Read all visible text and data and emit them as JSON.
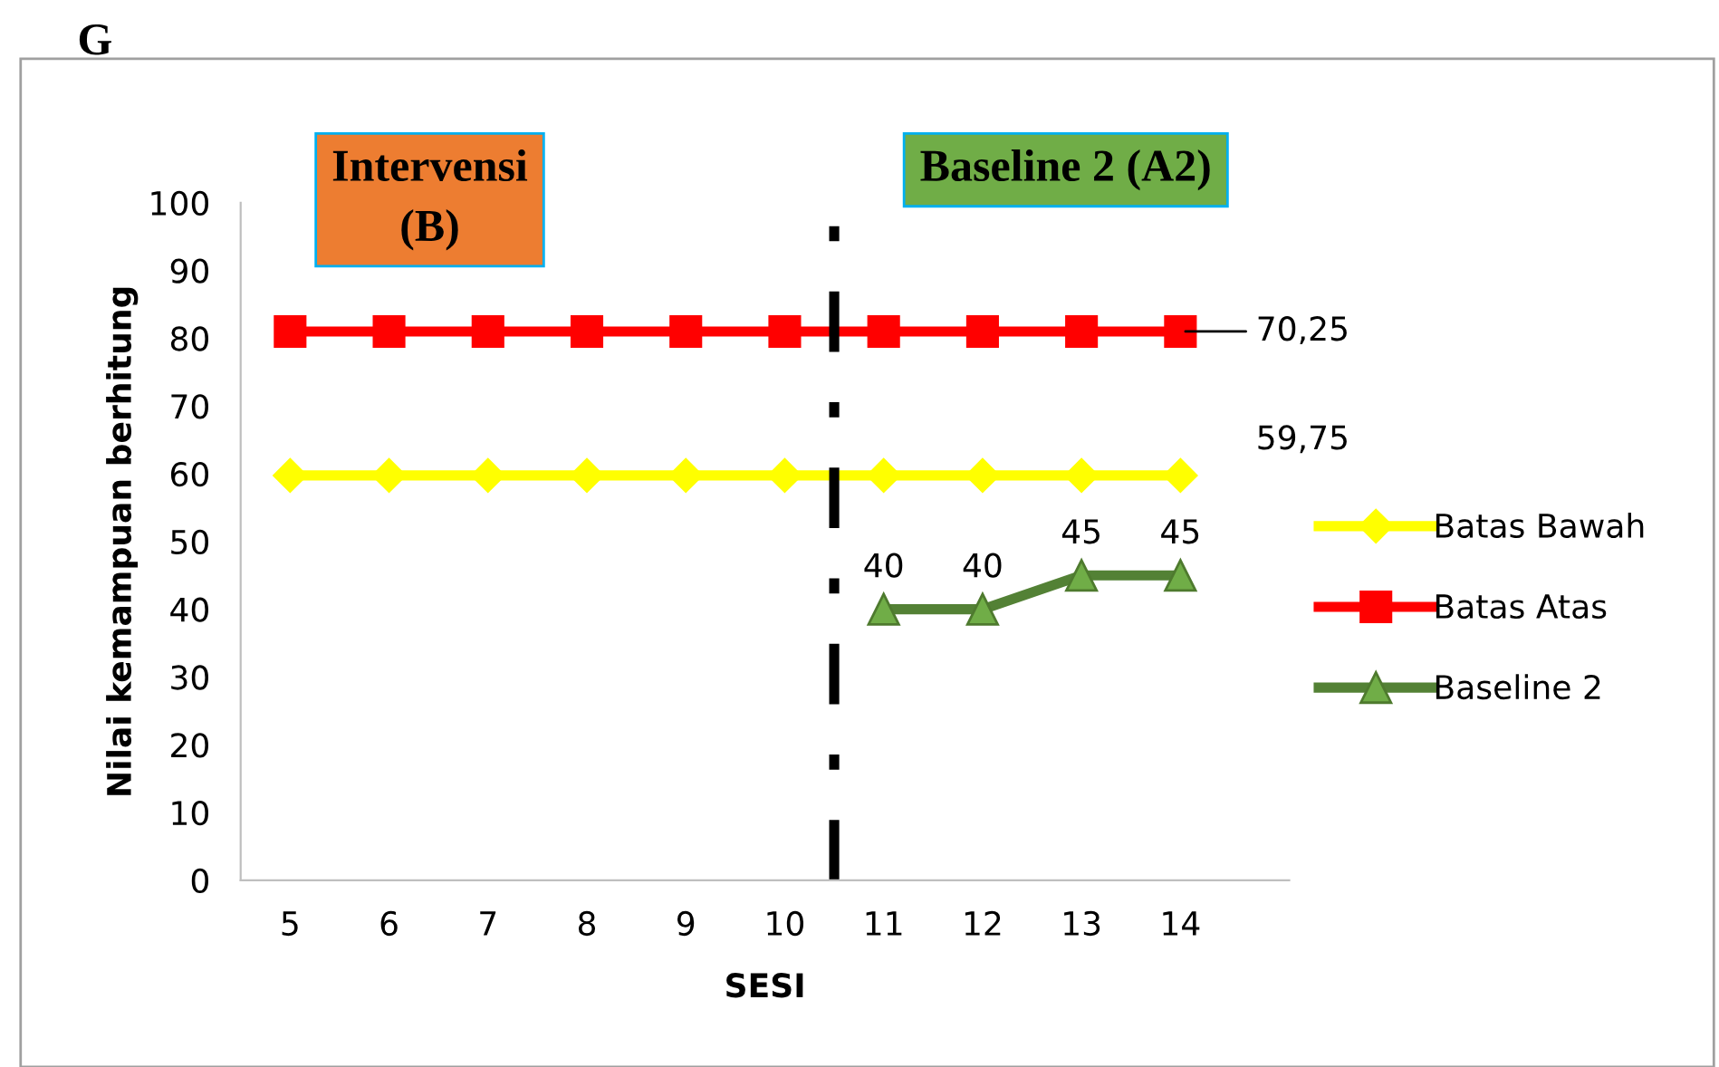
{
  "chart_data": {
    "type": "line",
    "title": "G",
    "xlabel": "SESI",
    "ylabel": "Nilai kemampuan berhitung",
    "x": [
      5,
      6,
      7,
      8,
      9,
      10,
      11,
      12,
      13,
      14
    ],
    "xlim": [
      4.5,
      15.1
    ],
    "xticks": [
      5,
      6,
      7,
      8,
      9,
      10,
      11,
      12,
      13,
      14
    ],
    "ylim": [
      0,
      100
    ],
    "yticks": [
      0,
      10,
      20,
      30,
      40,
      50,
      60,
      70,
      80,
      90,
      100
    ],
    "series": [
      {
        "name": "Batas Bawah",
        "color": "#ffff00",
        "marker": "diamond",
        "values": [
          59.75,
          59.75,
          59.75,
          59.75,
          59.75,
          59.75,
          59.75,
          59.75,
          59.75,
          59.75
        ]
      },
      {
        "name": "Batas Atas",
        "color": "#ff0000",
        "marker": "square",
        "values": [
          81,
          81,
          81,
          81,
          81,
          81,
          81,
          81,
          81,
          81
        ]
      },
      {
        "name": "Baseline 2",
        "color": "#538135",
        "marker": "triangle",
        "values": [
          null,
          null,
          null,
          null,
          null,
          null,
          40,
          40,
          45,
          45
        ],
        "value_labels": [
          null,
          null,
          null,
          null,
          null,
          null,
          "40",
          "40",
          "45",
          "45"
        ]
      }
    ],
    "ref_lines": [
      {
        "axis": "x",
        "value": 10.5,
        "color": "#000000",
        "line_style": "dashdot"
      }
    ],
    "annotations": [
      {
        "text": "70,25",
        "x": 14,
        "y": 81
      },
      {
        "text": "59,75",
        "x": 14,
        "y": 59.75
      },
      "Intervensi\n(B)",
      "Baseline 2 (A2)"
    ],
    "grid": false,
    "legend": "right"
  }
}
